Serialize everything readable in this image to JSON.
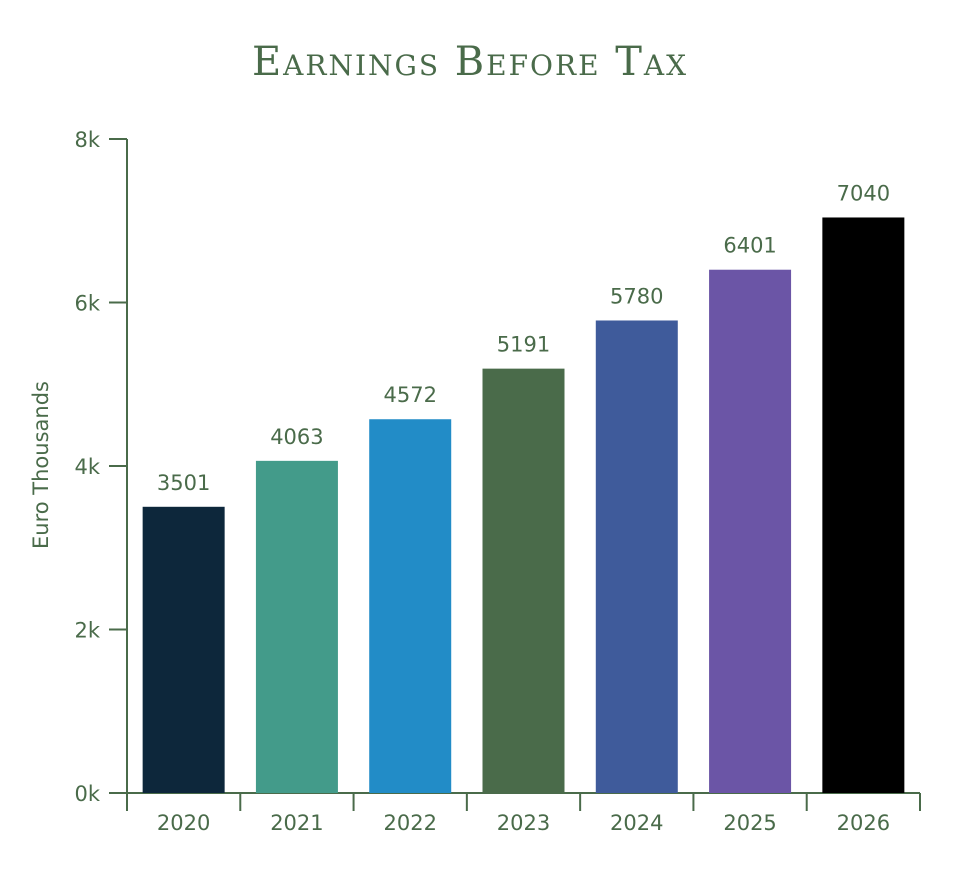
{
  "colors": {
    "text": "#4a6b4a",
    "axis": "#4a6b4a"
  },
  "chart_data": {
    "type": "bar",
    "title": "Earnings Before Tax",
    "ylabel": "Euro Thousands",
    "xlabel": "",
    "ylim": [
      0,
      8000
    ],
    "yticks": [
      0,
      2000,
      4000,
      6000,
      8000
    ],
    "ytick_labels": [
      "0k",
      "2k",
      "4k",
      "6k",
      "8k"
    ],
    "grid": false,
    "legend": "none",
    "categories": [
      "2020",
      "2021",
      "2022",
      "2023",
      "2024",
      "2025",
      "2026"
    ],
    "values": [
      3501,
      4063,
      4572,
      5191,
      5780,
      6401,
      7040
    ],
    "data_labels": [
      "3501",
      "4063",
      "4572",
      "5191",
      "5780",
      "6401",
      "7040"
    ],
    "bar_colors": [
      "#0d273b",
      "#439b8a",
      "#228cc7",
      "#4a6b4a",
      "#3f5b9b",
      "#6b55a6",
      "#000000"
    ]
  }
}
